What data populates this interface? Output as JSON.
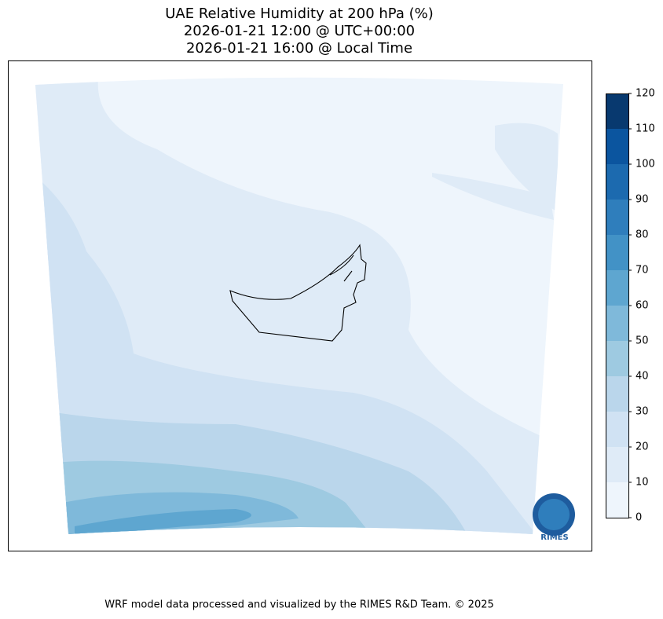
{
  "title": [
    "UAE Relative Humidity at 200 hPa (%)",
    "2026-01-21 12:00 @ UTC+00:00",
    "2026-01-21 16:00 @ Local Time"
  ],
  "colorbar": {
    "lim": [
      0,
      120
    ],
    "ticks": [
      0,
      10,
      20,
      30,
      40,
      50,
      60,
      70,
      80,
      90,
      100,
      110,
      120
    ],
    "colors": [
      "#eef5fc",
      "#dfebf7",
      "#d0e2f3",
      "#bad6eb",
      "#9ecae1",
      "#7fb9da",
      "#5ea6d0",
      "#4292c6",
      "#2f7ebc",
      "#1c6aaf",
      "#0b559f",
      "#08396f"
    ]
  },
  "logo": "RIMES",
  "footer": "WRF model data processed and visualized by the RIMES R&D Team. © 2025"
}
